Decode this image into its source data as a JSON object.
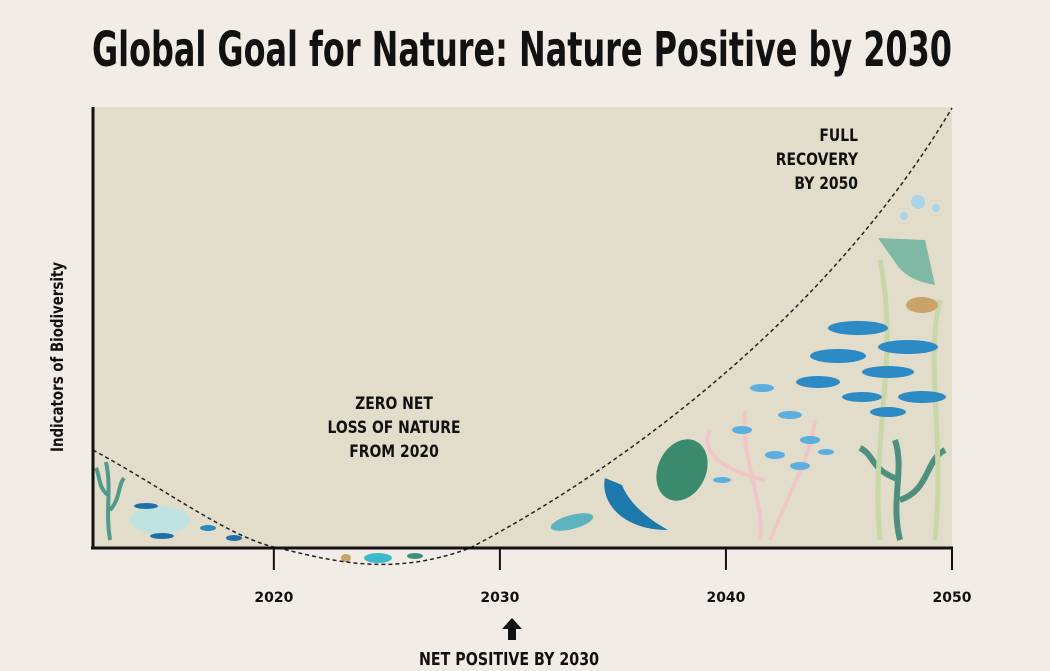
{
  "chart_data": {
    "type": "line",
    "title": "Global Goal for Nature: Nature Positive by 2030",
    "y_label": "Indicators of Biodiversity",
    "xlim": [
      2012,
      2050
    ],
    "xticks": [
      2020,
      2030,
      2040,
      2050
    ],
    "annotations": {
      "full_recovery": [
        "FULL",
        "RECOVERY",
        "BY 2050"
      ],
      "zero_net_loss": [
        "ZERO NET",
        "LOSS OF NATURE",
        "FROM 2020"
      ],
      "net_positive": "NET POSITIVE BY 2030"
    }
  }
}
